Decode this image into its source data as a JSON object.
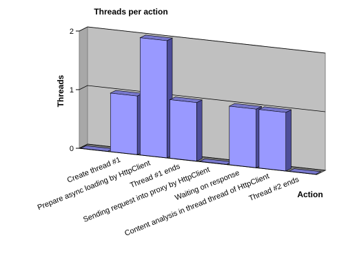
{
  "chart_data": {
    "type": "bar3d",
    "title": "Threads per action",
    "categories": [
      null,
      "Create thread #1",
      "Prepare async loading by HttpClient",
      "Thread #1 ends",
      "Sending request into proxy by HttpClient",
      "Waiting on response",
      "Content analysis in thread thread of HttpClient",
      "Thread #2 ends"
    ],
    "values": [
      0,
      1,
      2,
      1,
      0,
      1,
      1,
      0
    ],
    "color": "#9999ff",
    "xlabel": "Action",
    "ylabel": "Threads",
    "ylim": [
      0,
      2
    ],
    "yticks": [
      0,
      1,
      2
    ],
    "grid": true
  }
}
